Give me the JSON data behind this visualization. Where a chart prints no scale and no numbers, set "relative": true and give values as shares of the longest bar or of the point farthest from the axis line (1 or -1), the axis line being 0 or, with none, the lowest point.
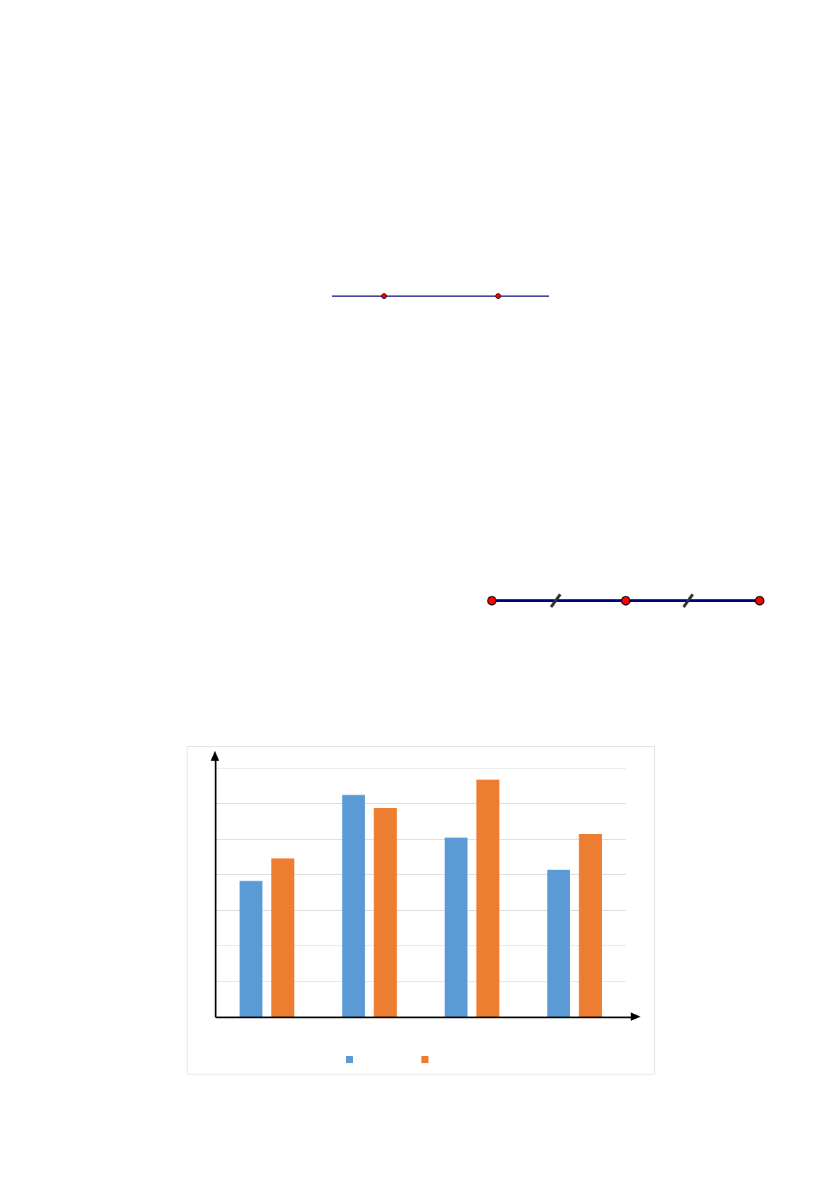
{
  "chart_data": {
    "type": "bar",
    "relative": true,
    "categories": [
      null,
      null,
      null,
      null
    ],
    "series": [
      {
        "color": "#5b9bd5",
        "values": [
          0.574,
          0.936,
          0.756,
          0.621
        ]
      },
      {
        "color": "#ed7d31",
        "values": [
          0.669,
          0.881,
          1,
          0.771
        ]
      }
    ],
    "grid": "y"
  }
}
